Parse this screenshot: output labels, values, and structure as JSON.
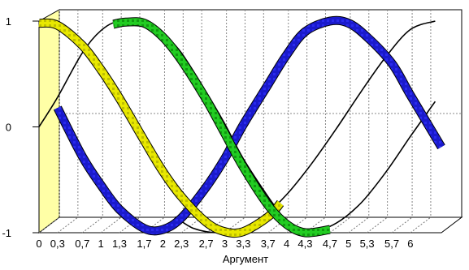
{
  "chart_data": {
    "type": "line",
    "title": "",
    "xlabel": "Аргумент",
    "ylabel": "",
    "xlim": [
      0,
      6.5
    ],
    "ylim": [
      -1,
      1
    ],
    "x_ticks": [
      "0",
      "0,3",
      "0,7",
      "1",
      "1,3",
      "1,7",
      "2",
      "2,3",
      "2,7",
      "3",
      "3,3",
      "3,7",
      "4",
      "4,3",
      "4,7",
      "5",
      "5,3",
      "5,7",
      "6"
    ],
    "y_ticks": [
      "-1",
      "0",
      "1"
    ],
    "grid": true,
    "legend": "none",
    "series": [
      {
        "color": "#1a1acc",
        "style": "ribbon",
        "x": [
          0.3,
          0.7,
          1.0,
          1.3,
          1.7,
          2.0,
          2.3,
          2.7,
          3.0,
          3.3,
          3.7,
          4.0,
          4.3,
          4.7,
          5.0,
          5.3,
          5.7,
          6.0,
          6.5
        ],
        "y": [
          0.18,
          -0.28,
          -0.55,
          -0.78,
          -0.96,
          -0.97,
          -0.86,
          -0.57,
          -0.3,
          0.02,
          0.4,
          0.68,
          0.9,
          1.0,
          0.98,
          0.85,
          0.6,
          0.3,
          -0.19
        ]
      },
      {
        "color": "#e8e800",
        "style": "ribbon",
        "x": [
          0.0,
          0.3,
          0.7,
          1.0,
          1.3,
          1.7,
          2.0,
          2.3,
          2.7,
          3.0,
          3.3,
          3.7,
          3.9
        ],
        "y": [
          0.98,
          0.96,
          0.77,
          0.54,
          0.27,
          -0.13,
          -0.42,
          -0.66,
          -0.9,
          -0.99,
          -0.99,
          -0.85,
          -0.72
        ]
      },
      {
        "color": "#22cc22",
        "style": "ribbon",
        "x": [
          1.2,
          1.4,
          1.7,
          2.0,
          2.3,
          2.7,
          3.0,
          3.3,
          3.7,
          4.0,
          4.3,
          4.7
        ],
        "y": [
          0.97,
          0.99,
          0.98,
          0.85,
          0.63,
          0.26,
          -0.06,
          -0.38,
          -0.74,
          -0.92,
          -1.0,
          -0.97
        ]
      },
      {
        "color": "#000000",
        "style": "line",
        "x": [
          0.0,
          0.3,
          0.7,
          1.0,
          1.3,
          1.7,
          2.0
        ],
        "y": [
          0.0,
          0.28,
          0.7,
          0.91,
          1.0,
          0.98,
          0.89
        ]
      },
      {
        "color": "#000000",
        "style": "line",
        "x": [
          2.0,
          2.3,
          2.7,
          3.0,
          3.3,
          3.7,
          4.0
        ],
        "y": [
          0.89,
          0.7,
          0.33,
          0.03,
          -0.3,
          -0.66,
          -0.9
        ]
      },
      {
        "color": "#000000",
        "style": "line",
        "x": [
          2.2,
          2.5,
          2.9,
          3.3,
          3.6,
          4.0,
          4.4,
          4.8,
          5.2,
          5.6,
          6.0,
          6.4
        ],
        "y": [
          -0.85,
          -0.96,
          -1.0,
          -0.96,
          -0.86,
          -0.64,
          -0.35,
          -0.02,
          0.33,
          0.66,
          0.92,
          1.0
        ]
      },
      {
        "color": "#000000",
        "style": "line",
        "x": [
          4.0,
          4.4,
          4.8,
          5.2,
          5.6,
          6.0,
          6.4
        ],
        "y": [
          -0.95,
          -0.99,
          -0.91,
          -0.72,
          -0.43,
          -0.09,
          0.24
        ]
      }
    ]
  }
}
